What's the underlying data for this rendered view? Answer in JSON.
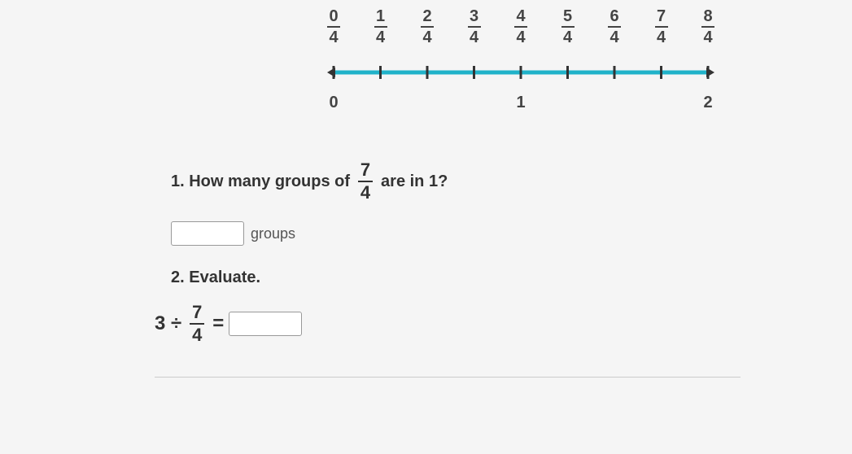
{
  "numberline": {
    "numerators": [
      "0",
      "1",
      "2",
      "3",
      "4",
      "5",
      "6",
      "7",
      "8"
    ],
    "denominator": "4",
    "whole_labels": [
      "0",
      "",
      "",
      "",
      "1",
      "",
      "",
      "",
      "2"
    ],
    "tick_count": 9,
    "line_color": "#20b2c9",
    "tick_color": "#333",
    "arrow_color": "#333"
  },
  "q1": {
    "prefix": "1. How many groups of",
    "frac_num": "7",
    "frac_den": "4",
    "suffix": "are in 1?"
  },
  "answer1_label": "groups",
  "q2_label": "2. Evaluate.",
  "eq": {
    "lhs": "3 ÷",
    "frac_num": "7",
    "frac_den": "4",
    "eq_sign": "="
  }
}
